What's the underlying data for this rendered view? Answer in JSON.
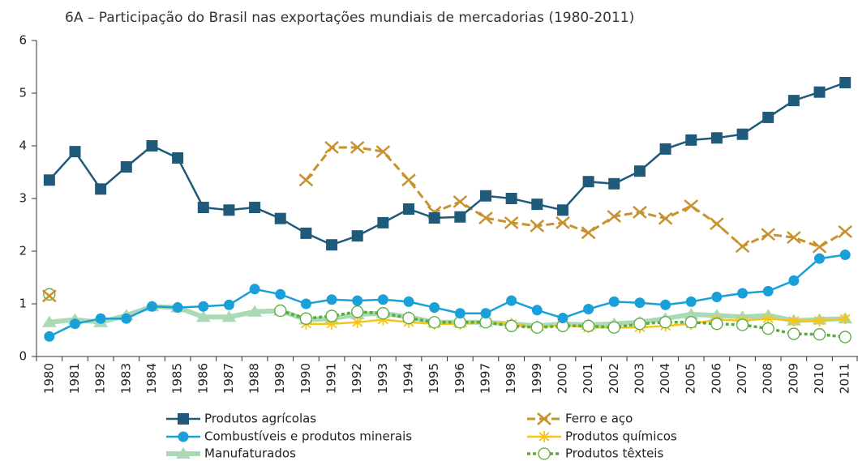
{
  "chart_data": {
    "type": "line",
    "title": "6A – Participação do Brasil nas exportações mundiais de mercadorias (1980-2011)",
    "categories": [
      "1980",
      "1981",
      "1982",
      "1983",
      "1984",
      "1985",
      "1986",
      "1987",
      "1988",
      "1989",
      "1990",
      "1991",
      "1992",
      "1993",
      "1994",
      "1995",
      "1996",
      "1997",
      "1998",
      "1999",
      "2000",
      "2001",
      "2002",
      "2003",
      "2004",
      "2005",
      "2006",
      "2007",
      "2008",
      "2009",
      "2010",
      "2011"
    ],
    "ylim": [
      0,
      6
    ],
    "yticks": [
      0,
      1,
      2,
      3,
      4,
      5,
      6
    ],
    "grid": false,
    "legend": "bottom",
    "series": [
      {
        "name": "Manufaturados",
        "color": "#a9d9b5",
        "marker": "triangle",
        "dash": false,
        "values": [
          0.65,
          0.7,
          0.65,
          0.78,
          0.95,
          0.93,
          0.75,
          0.75,
          0.85,
          0.87,
          0.7,
          0.72,
          0.8,
          0.82,
          0.75,
          0.65,
          0.65,
          0.65,
          0.62,
          0.58,
          0.62,
          0.6,
          0.62,
          0.65,
          0.72,
          0.8,
          0.78,
          0.75,
          0.78,
          0.68,
          0.7,
          0.72
        ]
      },
      {
        "name": "Produtos químicos",
        "color": "#f7c41a",
        "marker": "asterisk",
        "dash": false,
        "values": [
          null,
          null,
          null,
          null,
          null,
          null,
          null,
          null,
          null,
          null,
          0.62,
          0.62,
          0.65,
          0.7,
          0.65,
          0.62,
          0.62,
          0.65,
          0.62,
          0.55,
          0.6,
          0.55,
          0.55,
          0.55,
          0.58,
          0.62,
          0.7,
          0.68,
          0.72,
          0.68,
          0.68,
          0.72
        ]
      },
      {
        "name": "Produtos têxteis",
        "color": "#5aab3c",
        "marker": "open-circle",
        "dash": true,
        "values": [
          1.18,
          null,
          null,
          null,
          null,
          null,
          null,
          null,
          null,
          0.87,
          0.72,
          0.77,
          0.85,
          0.82,
          0.73,
          0.65,
          0.65,
          0.65,
          0.58,
          0.55,
          0.58,
          0.58,
          0.55,
          0.62,
          0.65,
          0.65,
          0.62,
          0.6,
          0.53,
          0.43,
          0.42,
          0.37
        ]
      },
      {
        "name": "Combustíveis e produtos minerais",
        "color": "#1aa0d8",
        "marker": "circle",
        "dash": false,
        "values": [
          0.38,
          0.62,
          0.72,
          0.72,
          0.95,
          0.93,
          0.95,
          0.98,
          1.28,
          1.18,
          1.0,
          1.08,
          1.06,
          1.08,
          1.04,
          0.93,
          0.82,
          0.82,
          1.06,
          0.88,
          0.73,
          0.9,
          1.04,
          1.02,
          0.98,
          1.04,
          1.13,
          1.2,
          1.24,
          1.44,
          1.86,
          1.93
        ]
      },
      {
        "name": "Ferro e aço",
        "color": "#c8922e",
        "marker": "x",
        "dash": true,
        "values": [
          1.15,
          null,
          null,
          null,
          null,
          null,
          null,
          null,
          null,
          null,
          3.35,
          3.97,
          3.97,
          3.89,
          3.35,
          2.74,
          2.94,
          2.63,
          2.54,
          2.48,
          2.54,
          2.35,
          2.66,
          2.74,
          2.62,
          2.86,
          2.52,
          2.09,
          2.32,
          2.26,
          2.08,
          2.37
        ]
      },
      {
        "name": "Produtos agrícolas",
        "color": "#1f5a7a",
        "marker": "square",
        "dash": false,
        "values": [
          3.35,
          3.89,
          3.18,
          3.6,
          4.0,
          3.77,
          2.83,
          2.78,
          2.83,
          2.62,
          2.34,
          2.12,
          2.29,
          2.54,
          2.8,
          2.63,
          2.65,
          3.05,
          3.0,
          2.89,
          2.78,
          3.32,
          3.28,
          3.52,
          3.94,
          4.11,
          4.15,
          4.22,
          4.54,
          4.86,
          5.02,
          5.2
        ]
      }
    ]
  }
}
